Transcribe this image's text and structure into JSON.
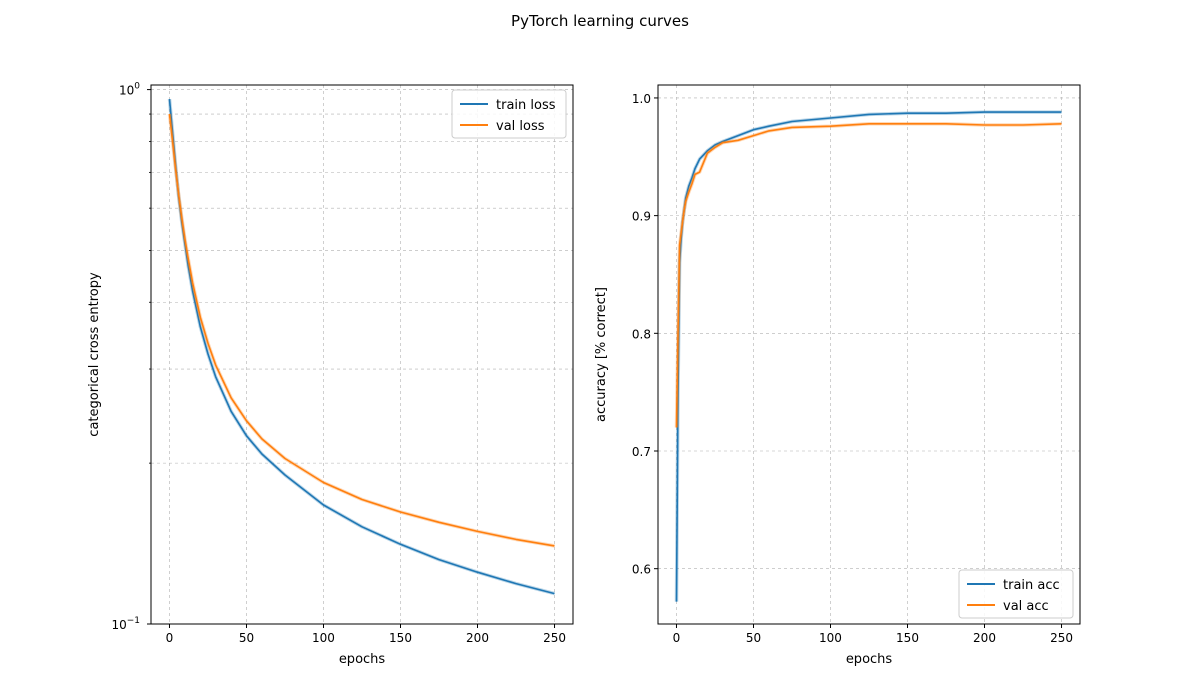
{
  "figure": {
    "title": "PyTorch learning curves"
  },
  "colors": {
    "train": "#1f77b4",
    "val": "#ff7f0e",
    "grid": "#b0b0b0"
  },
  "chart_data": [
    {
      "id": "loss",
      "type": "line",
      "title": "",
      "xlabel": "epochs",
      "ylabel": "categorical cross entropy",
      "yscale": "log",
      "xlim": [
        -12,
        262
      ],
      "ylim": [
        0.1,
        1.02
      ],
      "xticks": [
        {
          "v": 0,
          "label": "0"
        },
        {
          "v": 50,
          "label": "50"
        },
        {
          "v": 100,
          "label": "100"
        },
        {
          "v": 150,
          "label": "150"
        },
        {
          "v": 200,
          "label": "200"
        },
        {
          "v": 250,
          "label": "250"
        }
      ],
      "yticks": [
        {
          "v": 1.0,
          "base": "10",
          "exp": "0"
        },
        {
          "v": 0.1,
          "base": "10",
          "exp": "−1"
        }
      ],
      "grid": true,
      "legend": {
        "placement": "top-right"
      },
      "series": [
        {
          "name": "train loss",
          "color_key": "train",
          "x": [
            0,
            2,
            4,
            6,
            8,
            10,
            12,
            15,
            20,
            25,
            30,
            40,
            50,
            60,
            75,
            100,
            125,
            150,
            175,
            200,
            225,
            250
          ],
          "y": [
            0.96,
            0.83,
            0.72,
            0.63,
            0.565,
            0.515,
            0.47,
            0.42,
            0.36,
            0.32,
            0.29,
            0.25,
            0.225,
            0.208,
            0.19,
            0.167,
            0.152,
            0.141,
            0.132,
            0.125,
            0.119,
            0.114
          ]
        },
        {
          "name": "val loss",
          "color_key": "val",
          "x": [
            0,
            2,
            4,
            6,
            8,
            10,
            12,
            15,
            20,
            25,
            30,
            40,
            50,
            60,
            75,
            100,
            125,
            150,
            175,
            200,
            225,
            250
          ],
          "y": [
            0.9,
            0.8,
            0.71,
            0.635,
            0.575,
            0.525,
            0.485,
            0.435,
            0.375,
            0.335,
            0.305,
            0.265,
            0.24,
            0.222,
            0.204,
            0.184,
            0.171,
            0.162,
            0.155,
            0.149,
            0.144,
            0.14
          ]
        }
      ]
    },
    {
      "id": "acc",
      "type": "line",
      "title": "",
      "xlabel": "epochs",
      "ylabel": "accuracy [% correct]",
      "yscale": "linear",
      "xlim": [
        -12,
        262
      ],
      "ylim": [
        0.553,
        1.011
      ],
      "xticks": [
        {
          "v": 0,
          "label": "0"
        },
        {
          "v": 50,
          "label": "50"
        },
        {
          "v": 100,
          "label": "100"
        },
        {
          "v": 150,
          "label": "150"
        },
        {
          "v": 200,
          "label": "200"
        },
        {
          "v": 250,
          "label": "250"
        }
      ],
      "yticks": [
        {
          "v": 0.6,
          "label": "0.6"
        },
        {
          "v": 0.7,
          "label": "0.7"
        },
        {
          "v": 0.8,
          "label": "0.8"
        },
        {
          "v": 0.9,
          "label": "0.9"
        },
        {
          "v": 1.0,
          "label": "1.0"
        }
      ],
      "grid": true,
      "legend": {
        "placement": "bottom-right"
      },
      "series": [
        {
          "name": "train acc",
          "color_key": "train",
          "x": [
            0,
            1,
            2,
            3,
            4,
            5,
            6,
            8,
            10,
            12,
            15,
            20,
            25,
            30,
            40,
            50,
            60,
            75,
            100,
            125,
            150,
            175,
            200,
            225,
            250
          ],
          "y": [
            0.572,
            0.75,
            0.86,
            0.88,
            0.895,
            0.905,
            0.915,
            0.925,
            0.932,
            0.94,
            0.948,
            0.955,
            0.96,
            0.963,
            0.968,
            0.973,
            0.976,
            0.98,
            0.983,
            0.986,
            0.987,
            0.987,
            0.988,
            0.988,
            0.988
          ]
        },
        {
          "name": "val acc",
          "color_key": "val",
          "x": [
            0,
            1,
            2,
            3,
            4,
            5,
            6,
            8,
            10,
            12,
            15,
            20,
            25,
            30,
            40,
            50,
            60,
            75,
            100,
            125,
            150,
            175,
            200,
            225,
            250
          ],
          "y": [
            0.72,
            0.8,
            0.875,
            0.885,
            0.895,
            0.905,
            0.912,
            0.92,
            0.927,
            0.935,
            0.937,
            0.953,
            0.958,
            0.962,
            0.964,
            0.968,
            0.972,
            0.975,
            0.976,
            0.978,
            0.978,
            0.978,
            0.977,
            0.977,
            0.978
          ]
        }
      ]
    }
  ]
}
